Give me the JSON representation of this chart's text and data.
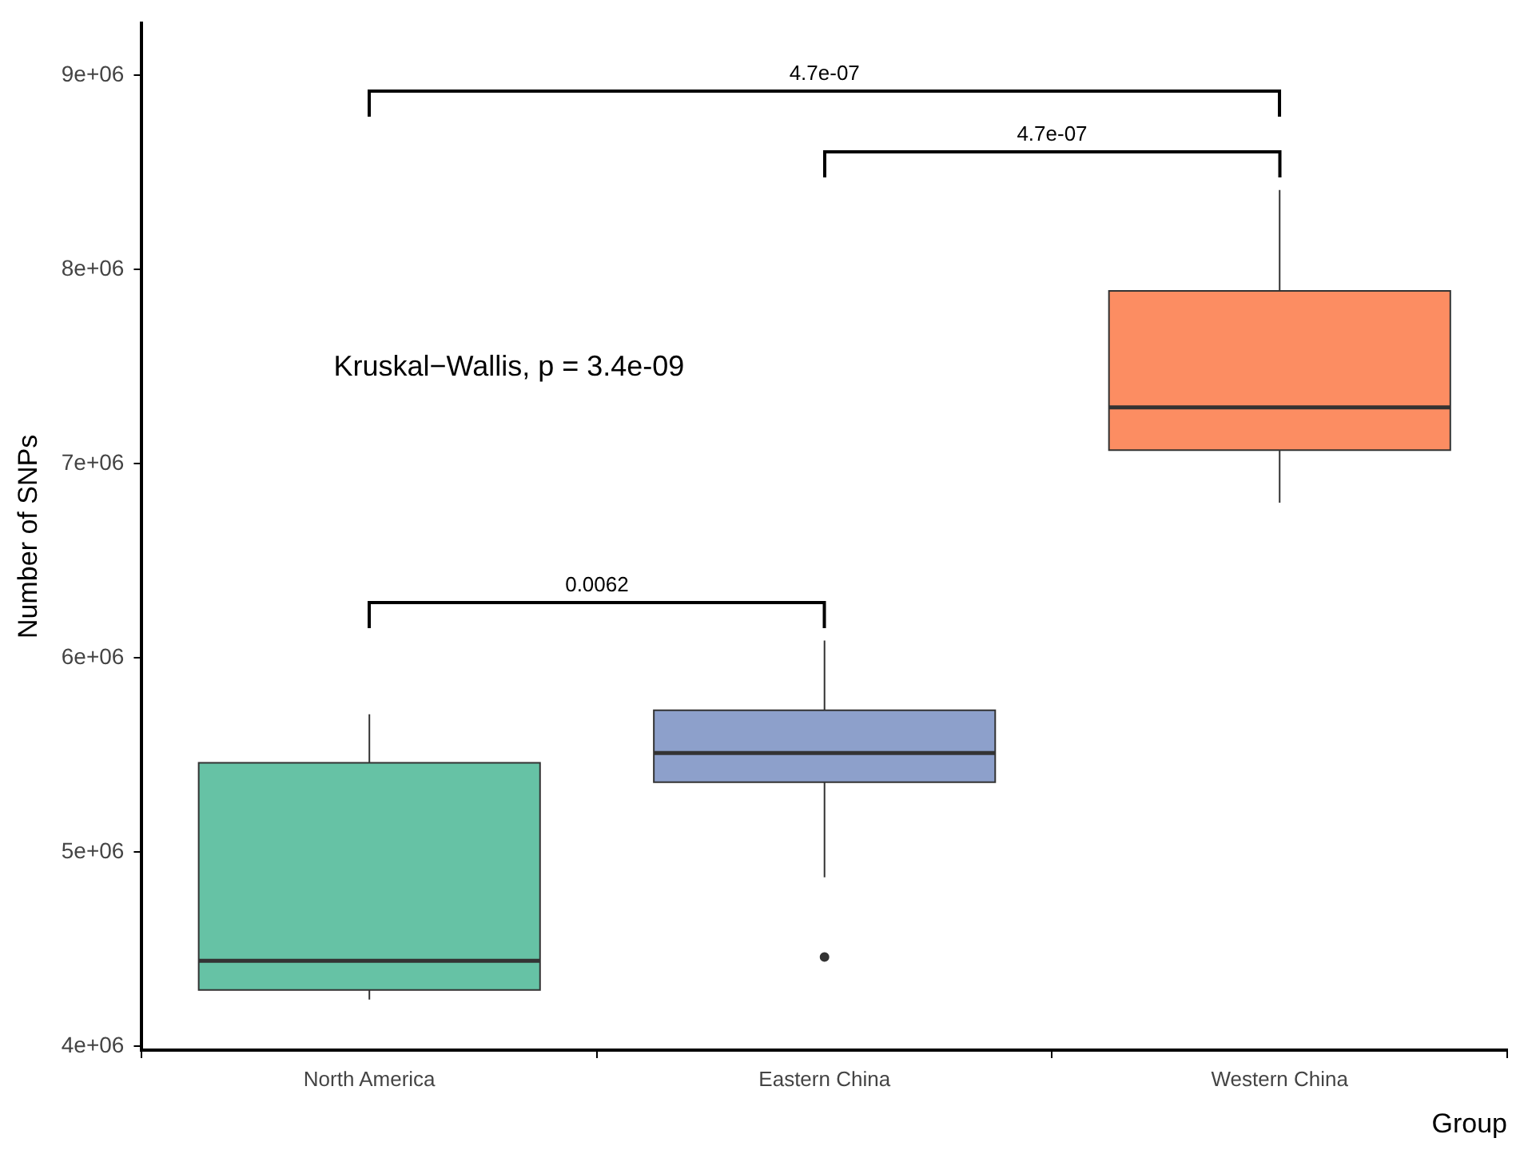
{
  "chart_data": {
    "type": "box",
    "xlabel": "Group",
    "ylabel": "Number of SNPs",
    "categories": [
      "North America",
      "Eastern China",
      "Western China"
    ],
    "colors": [
      "#66c2a5",
      "#8da0cb",
      "#fc8d62"
    ],
    "boxes": [
      {
        "low": 4240000,
        "q1": 4290000,
        "median": 4440000,
        "q3": 5460000,
        "high": 5710000
      },
      {
        "low": 4870000,
        "q1": 5360000,
        "median": 5510000,
        "q3": 5730000,
        "high": 6090000,
        "outliers": [
          4460000
        ]
      },
      {
        "low": 6800000,
        "q1": 7070000,
        "median": 7290000,
        "q3": 7890000,
        "high": 8410000
      }
    ],
    "ylim": [
      3980000,
      9270000
    ],
    "yticks": [
      {
        "value": 4000000,
        "label": "4e+06"
      },
      {
        "value": 5000000,
        "label": "5e+06"
      },
      {
        "value": 6000000,
        "label": "6e+06"
      },
      {
        "value": 7000000,
        "label": "7e+06"
      },
      {
        "value": 8000000,
        "label": "8e+06"
      },
      {
        "value": 9000000,
        "label": "9e+06"
      }
    ],
    "annotations": [
      "4.7e-07",
      "4.7e-07",
      "0.0062",
      "Kruskal−Wallis, p = 3.4e-09"
    ],
    "grid": false,
    "legend": false
  }
}
